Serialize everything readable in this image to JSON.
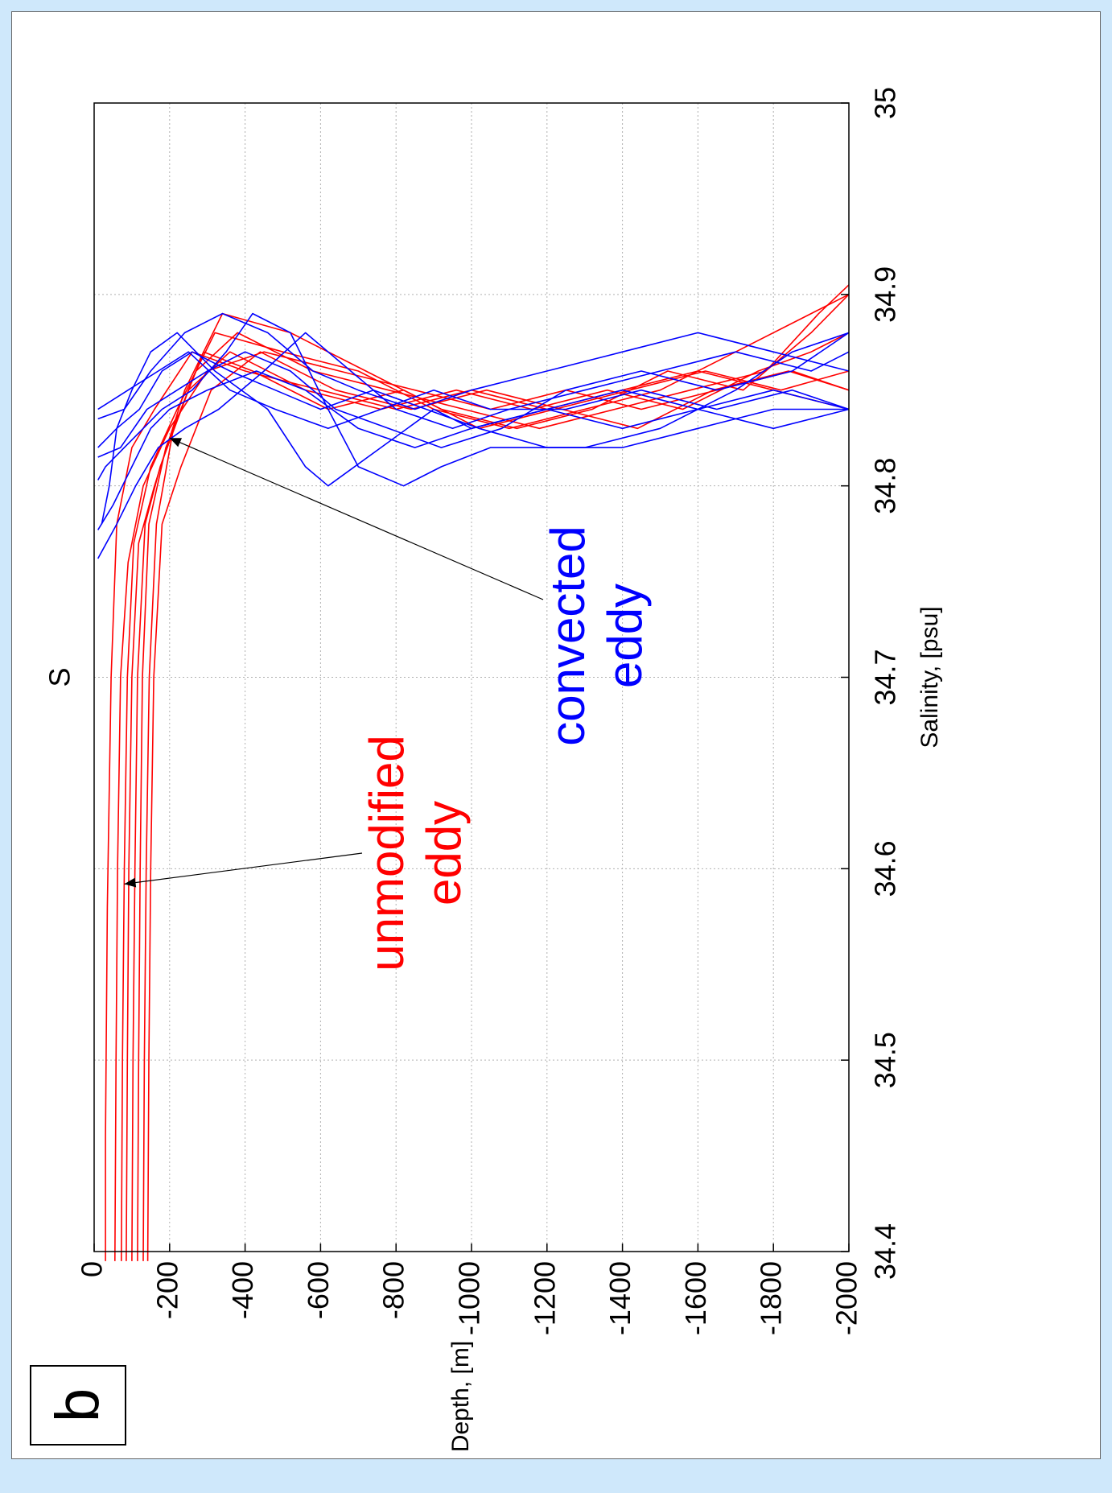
{
  "panel_label": "b",
  "colors": {
    "unmodified": "#ff0000",
    "convected": "#0000ff",
    "grid": "#b0b0b0"
  },
  "chart_data": {
    "type": "line",
    "title": "S",
    "xlabel": "Salinity, [psu]",
    "ylabel": "Depth, [m]",
    "xlim": [
      34.4,
      35.0
    ],
    "ylim": [
      -2000,
      0
    ],
    "xticks": [
      "34.4",
      "34.5",
      "34.6",
      "34.7",
      "34.8",
      "34.9",
      "35"
    ],
    "yticks": [
      "0",
      "-200",
      "-400",
      "-600",
      "-800",
      "-1000",
      "-1200",
      "-1400",
      "-1600",
      "-1800",
      "-2000"
    ],
    "grid": true,
    "annotations": [
      {
        "line1": "unmodified",
        "line2": "eddy",
        "color": "red",
        "arrow_to": [
          34.592,
          -80
        ]
      },
      {
        "line1": "convected",
        "line2": "eddy",
        "color": "blue",
        "arrow_to": [
          34.825,
          -200
        ]
      }
    ],
    "series": [
      {
        "color": "red",
        "points": [
          [
            34.395,
            -30
          ],
          [
            34.46,
            -30
          ],
          [
            34.58,
            -35
          ],
          [
            34.7,
            -45
          ],
          [
            34.78,
            -60
          ],
          [
            34.82,
            -100
          ],
          [
            34.84,
            -160
          ],
          [
            34.87,
            -260
          ],
          [
            34.86,
            -400
          ],
          [
            34.85,
            -600
          ],
          [
            34.84,
            -800
          ],
          [
            34.85,
            -1000
          ],
          [
            34.84,
            -1200
          ],
          [
            34.85,
            -1400
          ],
          [
            34.86,
            -1600
          ],
          [
            34.85,
            -1800
          ],
          [
            34.84,
            -2000
          ]
        ]
      },
      {
        "color": "red",
        "points": [
          [
            34.395,
            -55
          ],
          [
            34.5,
            -58
          ],
          [
            34.6,
            -62
          ],
          [
            34.7,
            -70
          ],
          [
            34.76,
            -90
          ],
          [
            34.8,
            -130
          ],
          [
            34.83,
            -200
          ],
          [
            34.86,
            -300
          ],
          [
            34.87,
            -450
          ],
          [
            34.86,
            -650
          ],
          [
            34.85,
            -850
          ],
          [
            34.84,
            -1050
          ],
          [
            34.85,
            -1250
          ],
          [
            34.84,
            -1450
          ],
          [
            34.85,
            -1650
          ],
          [
            34.86,
            -1850
          ],
          [
            34.85,
            -2000
          ]
        ]
      },
      {
        "color": "red",
        "points": [
          [
            34.395,
            -72
          ],
          [
            34.5,
            -75
          ],
          [
            34.6,
            -80
          ],
          [
            34.7,
            -88
          ],
          [
            34.77,
            -105
          ],
          [
            34.81,
            -150
          ],
          [
            34.84,
            -220
          ],
          [
            34.88,
            -320
          ],
          [
            34.87,
            -500
          ],
          [
            34.86,
            -700
          ],
          [
            34.84,
            -900
          ],
          [
            34.83,
            -1100
          ],
          [
            34.84,
            -1300
          ],
          [
            34.85,
            -1500
          ],
          [
            34.87,
            -1700
          ],
          [
            34.89,
            -1900
          ],
          [
            34.9,
            -2000
          ]
        ]
      },
      {
        "color": "red",
        "points": [
          [
            34.395,
            -85
          ],
          [
            34.5,
            -88
          ],
          [
            34.6,
            -92
          ],
          [
            34.7,
            -100
          ],
          [
            34.77,
            -118
          ],
          [
            34.8,
            -160
          ],
          [
            34.85,
            -240
          ],
          [
            34.89,
            -340
          ],
          [
            34.88,
            -520
          ],
          [
            34.86,
            -720
          ],
          [
            34.84,
            -920
          ],
          [
            34.83,
            -1120
          ],
          [
            34.84,
            -1320
          ],
          [
            34.86,
            -1520
          ],
          [
            34.85,
            -1720
          ],
          [
            34.88,
            -1900
          ],
          [
            34.9,
            -2000
          ]
        ]
      },
      {
        "color": "red",
        "points": [
          [
            34.395,
            -100
          ],
          [
            34.5,
            -103
          ],
          [
            34.6,
            -108
          ],
          [
            34.7,
            -115
          ],
          [
            34.78,
            -135
          ],
          [
            34.81,
            -175
          ],
          [
            34.85,
            -250
          ],
          [
            34.87,
            -360
          ],
          [
            34.85,
            -560
          ],
          [
            34.84,
            -760
          ],
          [
            34.85,
            -960
          ],
          [
            34.84,
            -1160
          ],
          [
            34.85,
            -1360
          ],
          [
            34.84,
            -1560
          ],
          [
            34.86,
            -1760
          ],
          [
            34.87,
            -1900
          ],
          [
            34.88,
            -2000
          ]
        ]
      },
      {
        "color": "red",
        "points": [
          [
            34.395,
            -115
          ],
          [
            34.5,
            -118
          ],
          [
            34.6,
            -122
          ],
          [
            34.7,
            -128
          ],
          [
            34.78,
            -145
          ],
          [
            34.82,
            -190
          ],
          [
            34.86,
            -270
          ],
          [
            34.88,
            -380
          ],
          [
            34.86,
            -580
          ],
          [
            34.85,
            -780
          ],
          [
            34.84,
            -980
          ],
          [
            34.83,
            -1180
          ],
          [
            34.84,
            -1380
          ],
          [
            34.85,
            -1580
          ],
          [
            34.86,
            -1780
          ],
          [
            34.89,
            -1920
          ],
          [
            34.905,
            -2000
          ]
        ]
      },
      {
        "color": "red",
        "points": [
          [
            34.395,
            -130
          ],
          [
            34.5,
            -133
          ],
          [
            34.6,
            -138
          ],
          [
            34.7,
            -146
          ],
          [
            34.78,
            -165
          ],
          [
            34.83,
            -210
          ],
          [
            34.87,
            -290
          ],
          [
            34.86,
            -420
          ],
          [
            34.84,
            -620
          ],
          [
            34.85,
            -820
          ],
          [
            34.83,
            -1020
          ],
          [
            34.84,
            -1220
          ],
          [
            34.85,
            -1420
          ],
          [
            34.86,
            -1620
          ],
          [
            34.85,
            -1820
          ],
          [
            34.86,
            -2000
          ]
        ]
      },
      {
        "color": "red",
        "points": [
          [
            34.395,
            -142
          ],
          [
            34.5,
            -145
          ],
          [
            34.6,
            -150
          ],
          [
            34.7,
            -158
          ],
          [
            34.78,
            -180
          ],
          [
            34.81,
            -230
          ],
          [
            34.85,
            -310
          ],
          [
            34.87,
            -440
          ],
          [
            34.85,
            -640
          ],
          [
            34.84,
            -840
          ],
          [
            34.85,
            -1040
          ],
          [
            34.84,
            -1240
          ],
          [
            34.83,
            -1440
          ],
          [
            34.85,
            -1640
          ],
          [
            34.86,
            -1840
          ],
          [
            34.85,
            -2000
          ]
        ]
      },
      {
        "color": "blue",
        "points": [
          [
            34.78,
            -20
          ],
          [
            34.8,
            -40
          ],
          [
            34.83,
            -60
          ],
          [
            34.85,
            -100
          ],
          [
            34.87,
            -150
          ],
          [
            34.88,
            -220
          ],
          [
            34.86,
            -320
          ],
          [
            34.84,
            -460
          ],
          [
            34.81,
            -560
          ],
          [
            34.8,
            -620
          ],
          [
            34.82,
            -760
          ],
          [
            34.84,
            -900
          ],
          [
            34.83,
            -1000
          ],
          [
            34.84,
            -1200
          ],
          [
            34.83,
            -1400
          ],
          [
            34.84,
            -1600
          ],
          [
            34.83,
            -1800
          ],
          [
            34.84,
            -2000
          ]
        ]
      },
      {
        "color": "blue",
        "points": [
          [
            34.803,
            -10
          ],
          [
            34.81,
            -30
          ],
          [
            34.82,
            -80
          ],
          [
            34.83,
            -130
          ],
          [
            34.84,
            -180
          ],
          [
            34.85,
            -260
          ],
          [
            34.87,
            -350
          ],
          [
            34.89,
            -420
          ],
          [
            34.88,
            -520
          ],
          [
            34.84,
            -620
          ],
          [
            34.81,
            -700
          ],
          [
            34.8,
            -820
          ],
          [
            34.81,
            -920
          ],
          [
            34.82,
            -1050
          ],
          [
            34.82,
            -1300
          ],
          [
            34.83,
            -1500
          ],
          [
            34.85,
            -1700
          ],
          [
            34.87,
            -1850
          ],
          [
            34.88,
            -2000
          ]
        ]
      },
      {
        "color": "blue",
        "points": [
          [
            34.777,
            -10
          ],
          [
            34.79,
            -50
          ],
          [
            34.81,
            -100
          ],
          [
            34.83,
            -150
          ],
          [
            34.84,
            -200
          ],
          [
            34.85,
            -300
          ],
          [
            34.86,
            -430
          ],
          [
            34.85,
            -560
          ],
          [
            34.83,
            -700
          ],
          [
            34.82,
            -850
          ],
          [
            34.83,
            -1000
          ],
          [
            34.84,
            -1200
          ],
          [
            34.85,
            -1400
          ],
          [
            34.84,
            -1600
          ],
          [
            34.85,
            -1800
          ],
          [
            34.84,
            -2000
          ]
        ]
      },
      {
        "color": "blue",
        "points": [
          [
            34.762,
            -10
          ],
          [
            34.78,
            -60
          ],
          [
            34.8,
            -110
          ],
          [
            34.82,
            -170
          ],
          [
            34.83,
            -240
          ],
          [
            34.84,
            -330
          ],
          [
            34.86,
            -450
          ],
          [
            34.88,
            -560
          ],
          [
            34.86,
            -680
          ],
          [
            34.84,
            -800
          ],
          [
            34.83,
            -950
          ],
          [
            34.84,
            -1100
          ],
          [
            34.85,
            -1300
          ],
          [
            34.86,
            -1500
          ],
          [
            34.87,
            -1700
          ],
          [
            34.86,
            -1900
          ],
          [
            34.87,
            -2000
          ]
        ]
      },
      {
        "color": "blue",
        "points": [
          [
            34.82,
            -10
          ],
          [
            34.83,
            -60
          ],
          [
            34.84,
            -120
          ],
          [
            34.86,
            -180
          ],
          [
            34.87,
            -260
          ],
          [
            34.86,
            -360
          ],
          [
            34.85,
            -480
          ],
          [
            34.84,
            -600
          ],
          [
            34.85,
            -740
          ],
          [
            34.84,
            -880
          ],
          [
            34.83,
            -1020
          ],
          [
            34.82,
            -1200
          ],
          [
            34.82,
            -1400
          ],
          [
            34.83,
            -1600
          ],
          [
            34.84,
            -1800
          ],
          [
            34.84,
            -2000
          ]
        ]
      },
      {
        "color": "blue",
        "points": [
          [
            34.835,
            -10
          ],
          [
            34.84,
            -80
          ],
          [
            34.86,
            -150
          ],
          [
            34.88,
            -240
          ],
          [
            34.89,
            -340
          ],
          [
            34.88,
            -460
          ],
          [
            34.86,
            -580
          ],
          [
            34.85,
            -700
          ],
          [
            34.84,
            -850
          ],
          [
            34.85,
            -1000
          ],
          [
            34.86,
            -1200
          ],
          [
            34.87,
            -1400
          ],
          [
            34.88,
            -1600
          ],
          [
            34.87,
            -1800
          ],
          [
            34.86,
            -2000
          ]
        ]
      },
      {
        "color": "blue",
        "points": [
          [
            34.815,
            -10
          ],
          [
            34.82,
            -70
          ],
          [
            34.84,
            -140
          ],
          [
            34.85,
            -220
          ],
          [
            34.86,
            -300
          ],
          [
            34.87,
            -400
          ],
          [
            34.86,
            -520
          ],
          [
            34.84,
            -640
          ],
          [
            34.83,
            -780
          ],
          [
            34.82,
            -920
          ],
          [
            34.83,
            -1080
          ],
          [
            34.85,
            -1250
          ],
          [
            34.86,
            -1450
          ],
          [
            34.85,
            -1650
          ],
          [
            34.86,
            -1850
          ],
          [
            34.88,
            -2000
          ]
        ]
      },
      {
        "color": "blue",
        "points": [
          [
            34.84,
            -10
          ],
          [
            34.85,
            -90
          ],
          [
            34.86,
            -170
          ],
          [
            34.87,
            -250
          ],
          [
            34.85,
            -360
          ],
          [
            34.84,
            -480
          ],
          [
            34.83,
            -620
          ],
          [
            34.84,
            -760
          ],
          [
            34.85,
            -900
          ],
          [
            34.84,
            -1050
          ],
          [
            34.84,
            -1250
          ],
          [
            34.85,
            -1450
          ],
          [
            34.84,
            -1650
          ],
          [
            34.85,
            -1850
          ],
          [
            34.84,
            -2000
          ]
        ]
      }
    ]
  }
}
